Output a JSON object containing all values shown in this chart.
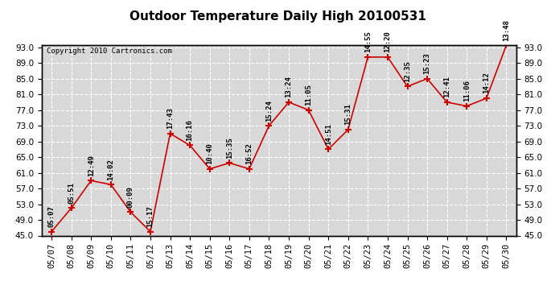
{
  "title": "Outdoor Temperature Daily High 20100531",
  "copyright": "Copyright 2010 Cartronics.com",
  "dates": [
    "05/07",
    "05/08",
    "05/09",
    "05/10",
    "05/11",
    "05/12",
    "05/13",
    "05/14",
    "05/15",
    "05/16",
    "05/17",
    "05/18",
    "05/19",
    "05/20",
    "05/21",
    "05/22",
    "05/23",
    "05/24",
    "05/25",
    "05/26",
    "05/27",
    "05/28",
    "05/29",
    "05/30"
  ],
  "temps": [
    46.0,
    52.0,
    59.0,
    58.0,
    51.0,
    46.0,
    71.0,
    68.0,
    62.0,
    63.5,
    62.0,
    73.0,
    79.0,
    77.0,
    67.0,
    72.0,
    90.5,
    90.5,
    83.0,
    85.0,
    79.0,
    78.0,
    80.0,
    93.5
  ],
  "time_labels": [
    "05:07",
    "05:51",
    "12:49",
    "14:02",
    "00:09",
    "15:17",
    "17:43",
    "16:16",
    "10:40",
    "15:35",
    "16:52",
    "15:24",
    "13:24",
    "11:05",
    "14:51",
    "15:31",
    "14:55",
    "12:20",
    "12:35",
    "15:23",
    "12:41",
    "11:06",
    "14:12",
    "13:48"
  ],
  "ylim_min": 45.0,
  "ylim_max": 93.5,
  "yticks": [
    45.0,
    49.0,
    53.0,
    57.0,
    61.0,
    65.0,
    69.0,
    73.0,
    77.0,
    81.0,
    85.0,
    89.0,
    93.0
  ],
  "line_color": "#cc0000",
  "marker_color": "#cc0000",
  "plot_bg_color": "#d8d8d8",
  "fig_bg_color": "#ffffff",
  "grid_color": "#ffffff",
  "title_fontsize": 11,
  "copyright_fontsize": 6.5,
  "label_fontsize": 6.5,
  "tick_fontsize": 7.5
}
